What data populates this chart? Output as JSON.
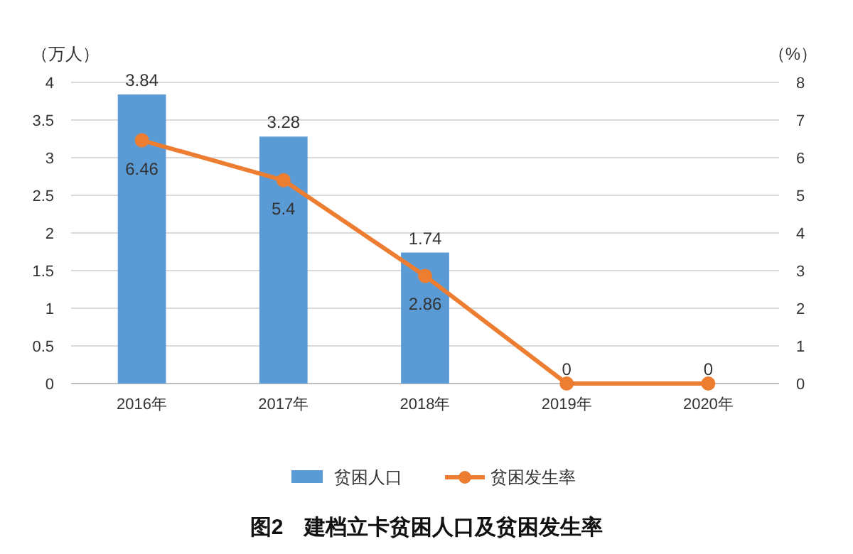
{
  "chart_data": {
    "type": "bar",
    "title": "图2　建档立卡贫困人口及贫困发生率",
    "ylabel": "（万人）",
    "y2label": "（%）",
    "categories": [
      "2016年",
      "2017年",
      "2018年",
      "2019年",
      "2020年"
    ],
    "series": [
      {
        "name": "贫困人口",
        "color": "#5b9bd5",
        "values": [
          3.84,
          3.28,
          1.74,
          0,
          0
        ],
        "value_labels": [
          "3.84",
          "3.28",
          "1.74",
          "0",
          "0"
        ]
      },
      {
        "name": "贫困发生率",
        "type": "line",
        "axis": "y2",
        "color": "#ed7d31",
        "marker": "circle",
        "values": [
          6.46,
          5.4,
          2.86,
          0,
          0
        ],
        "value_labels": [
          "6.46",
          "5.4",
          "2.86",
          null,
          null
        ]
      }
    ],
    "ylim": [
      0,
      4
    ],
    "yticks": [
      0,
      0.5,
      1,
      1.5,
      2,
      2.5,
      3,
      3.5,
      4
    ],
    "y2lim": [
      0,
      8
    ],
    "y2ticks": [
      0,
      1,
      2,
      3,
      4,
      5,
      6,
      7,
      8
    ],
    "grid": "y",
    "legend": "bottom"
  }
}
